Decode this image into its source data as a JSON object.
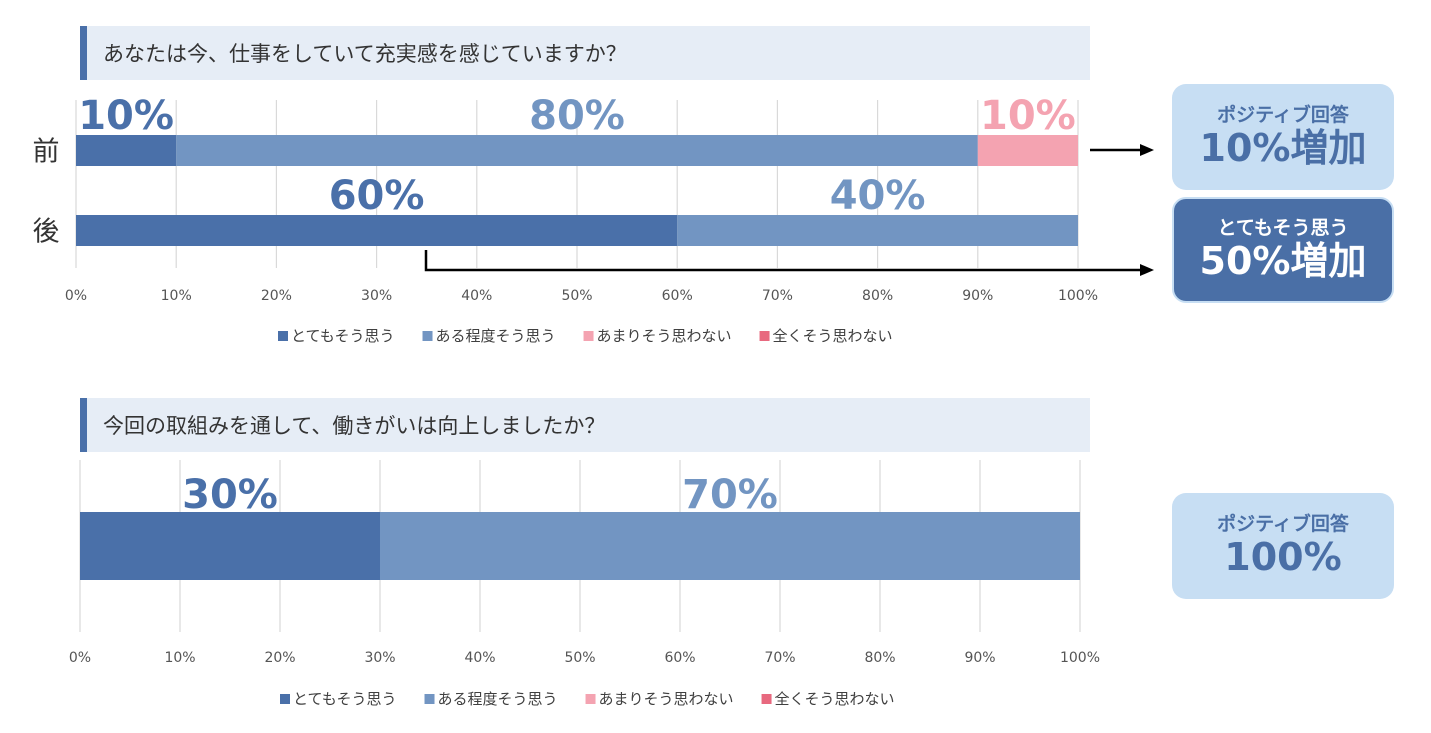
{
  "q1": {
    "question": "あなたは今、仕事をしていて充実感を感じていますか？"
  },
  "q2": {
    "question": "今回の取組みを通して、働きがいは向上しましたか？"
  },
  "callouts": {
    "c1": {
      "line1": "ポジティブ回答",
      "line2": "10%増加"
    },
    "c2": {
      "line1": "とてもそう思う",
      "line2": "50%増加"
    },
    "c3": {
      "line1": "ポジティブ回答",
      "line2": "100%"
    }
  },
  "colors": {
    "strongly_agree": "#4a70a9",
    "agree": "#7295c2",
    "disagree": "#f4a3b1",
    "strongly_disagree": "#e8697f",
    "gridline": "#d9d9d9"
  },
  "chart_data": [
    {
      "type": "bar",
      "orientation": "horizontal-stacked-100",
      "title": "",
      "categories": [
        "前",
        "後"
      ],
      "series": [
        {
          "name": "とてもそう思う",
          "values": [
            10,
            60
          ]
        },
        {
          "name": "ある程度そう思う",
          "values": [
            80,
            40
          ]
        },
        {
          "name": "あまりそう思わない",
          "values": [
            10,
            0
          ]
        },
        {
          "name": "全くそう思わない",
          "values": [
            0,
            0
          ]
        }
      ],
      "tick_labels": [
        "0%",
        "10%",
        "20%",
        "30%",
        "40%",
        "50%",
        "60%",
        "70%",
        "80%",
        "90%",
        "100%"
      ],
      "data_labels": [
        {
          "text": "10%",
          "category": 0,
          "series": 0
        },
        {
          "text": "80%",
          "category": 0,
          "series": 1
        },
        {
          "text": "10%",
          "category": 0,
          "series": 2
        },
        {
          "text": "60%",
          "category": 1,
          "series": 0
        },
        {
          "text": "40%",
          "category": 1,
          "series": 1
        }
      ],
      "xlim": [
        0,
        100
      ],
      "grid": true,
      "legend": "bottom"
    },
    {
      "type": "bar",
      "orientation": "horizontal-stacked-100",
      "title": "",
      "categories": [
        ""
      ],
      "series": [
        {
          "name": "とてもそう思う",
          "values": [
            30
          ]
        },
        {
          "name": "ある程度そう思う",
          "values": [
            70
          ]
        },
        {
          "name": "あまりそう思わない",
          "values": [
            0
          ]
        },
        {
          "name": "全くそう思わない",
          "values": [
            0
          ]
        }
      ],
      "tick_labels": [
        "0%",
        "10%",
        "20%",
        "30%",
        "40%",
        "50%",
        "60%",
        "70%",
        "80%",
        "90%",
        "100%"
      ],
      "data_labels": [
        {
          "text": "30%",
          "category": 0,
          "series": 0
        },
        {
          "text": "70%",
          "category": 0,
          "series": 1
        }
      ],
      "xlim": [
        0,
        100
      ],
      "grid": true,
      "legend": "bottom"
    }
  ]
}
